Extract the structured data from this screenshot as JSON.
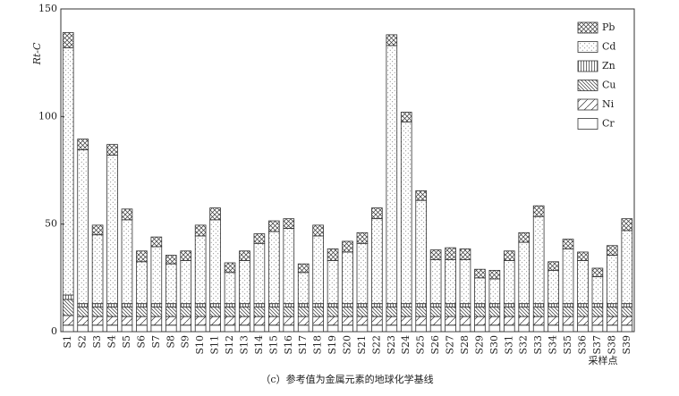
{
  "chart_data": {
    "type": "stacked_bar",
    "y_label": "Rt-C",
    "x_label": "采样点",
    "caption": "（c）参考值为金属元素的地球化学基线",
    "categories": [
      "S1",
      "S2",
      "S3",
      "S4",
      "S5",
      "S6",
      "S7",
      "S8",
      "S9",
      "S10",
      "S11",
      "S12",
      "S13",
      "S14",
      "S15",
      "S16",
      "S17",
      "S18",
      "S19",
      "S20",
      "S21",
      "S22",
      "S23",
      "S24",
      "S25",
      "S26",
      "S27",
      "S28",
      "S29",
      "S30",
      "S31",
      "S32",
      "S33",
      "S34",
      "S35",
      "S36",
      "S37",
      "S38",
      "S39"
    ],
    "series": [
      {
        "name": "Cr",
        "color": "#333333",
        "pattern": "none",
        "values": [
          3,
          3,
          3,
          3,
          3,
          3,
          3,
          3,
          3,
          3,
          3,
          3,
          3,
          3,
          3,
          3,
          3,
          3,
          3,
          3,
          3,
          3,
          3,
          3,
          3,
          3,
          3,
          3,
          3,
          3,
          3,
          3,
          3,
          3,
          3,
          3,
          3,
          3,
          3
        ]
      },
      {
        "name": "Ni",
        "color": "#333333",
        "pattern": "sparse-hatch",
        "values": [
          4.5,
          4,
          4,
          4,
          4,
          4,
          4,
          4,
          4,
          4,
          4,
          4,
          4,
          4,
          4,
          4,
          4,
          4,
          4,
          4,
          4,
          4,
          4,
          4,
          4,
          4,
          4,
          4,
          4,
          4,
          4,
          4,
          4,
          4,
          4,
          4,
          4,
          4,
          4
        ]
      },
      {
        "name": "Cu",
        "color": "#333333",
        "pattern": "hatch",
        "values": [
          7.5,
          4.5,
          4.5,
          4.5,
          4.5,
          4.5,
          4.5,
          4.5,
          4.5,
          4.5,
          4.5,
          4.5,
          4.5,
          4.5,
          4.5,
          4.5,
          4.5,
          4.5,
          4.5,
          4.5,
          4.5,
          4.5,
          4.5,
          4.5,
          4.5,
          4.5,
          4.5,
          4.5,
          4.5,
          4.5,
          4.5,
          4.5,
          4.5,
          4.5,
          4.5,
          4.5,
          4.5,
          4.5,
          4.5
        ]
      },
      {
        "name": "Zn",
        "color": "#333333",
        "pattern": "vertical",
        "values": [
          2,
          1.5,
          1.5,
          1.5,
          1.5,
          1.5,
          1.5,
          1.5,
          1.5,
          1.5,
          1.5,
          1.5,
          1.5,
          1.5,
          1.5,
          1.5,
          1.5,
          1.5,
          1.5,
          1.5,
          1.5,
          1.5,
          1.5,
          1.5,
          1.5,
          1.5,
          1.5,
          1.5,
          1.5,
          1.5,
          1.5,
          1.5,
          1.5,
          1.5,
          1.5,
          1.5,
          1.5,
          1.5,
          1.5
        ]
      },
      {
        "name": "Cd",
        "color": "#333333",
        "pattern": "dots",
        "values": [
          115,
          71.5,
          32,
          69,
          39,
          19.5,
          26.5,
          18.5,
          20,
          31.5,
          39,
          14.5,
          20,
          28,
          33.5,
          35,
          14.5,
          31.5,
          20,
          24,
          28,
          39.5,
          120,
          84.5,
          48,
          20.5,
          20.5,
          20.5,
          12,
          11.5,
          20,
          28.5,
          40.5,
          15.5,
          25.5,
          20,
          12.5,
          22.5,
          34
        ]
      },
      {
        "name": "Pb",
        "color": "#333333",
        "pattern": "crosshatch",
        "values": [
          7,
          5,
          4.5,
          5,
          5,
          5,
          4.5,
          4,
          4.5,
          5,
          5.5,
          4.5,
          4.5,
          4.5,
          5,
          4.5,
          4,
          5,
          5.5,
          5,
          5,
          5,
          5,
          4.5,
          4.5,
          4.5,
          5.5,
          5,
          4,
          4,
          4.5,
          4.5,
          5,
          4,
          4.5,
          4,
          4,
          4.5,
          5.5
        ]
      }
    ],
    "ylim": [
      0,
      150
    ],
    "yticks": [
      0,
      50,
      100,
      150
    ],
    "grid": false,
    "legend": "top-right"
  }
}
